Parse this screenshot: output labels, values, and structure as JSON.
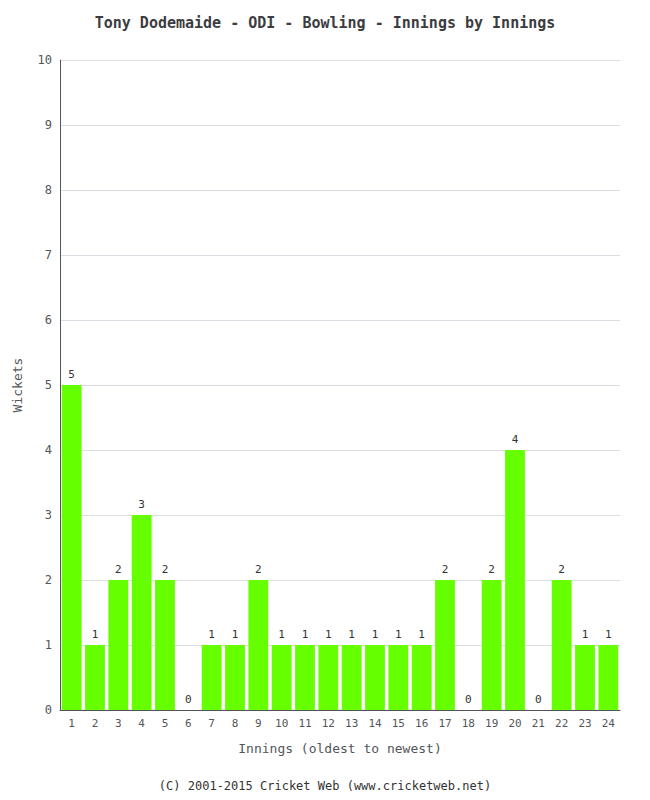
{
  "chart_data": {
    "type": "bar",
    "title": "Tony Dodemaide - ODI - Bowling - Innings by Innings",
    "xlabel": "Innings (oldest to newest)",
    "ylabel": "Wickets",
    "annotations": [
      "(C) 2001-2015 Cricket Web (www.cricketweb.net)"
    ],
    "categories": [
      "1",
      "2",
      "3",
      "4",
      "5",
      "6",
      "7",
      "8",
      "9",
      "10",
      "11",
      "12",
      "13",
      "14",
      "15",
      "16",
      "17",
      "18",
      "19",
      "20",
      "21",
      "22",
      "23",
      "24"
    ],
    "values": [
      5,
      1,
      2,
      3,
      2,
      0,
      1,
      1,
      2,
      1,
      1,
      1,
      1,
      1,
      1,
      1,
      2,
      0,
      2,
      4,
      0,
      2,
      1,
      1
    ],
    "color": "#66ff00",
    "ylim": [
      0,
      10
    ],
    "yticks": [
      0,
      1,
      2,
      3,
      4,
      5,
      6,
      7,
      8,
      9,
      10
    ],
    "grid": true,
    "data_labels": true
  }
}
